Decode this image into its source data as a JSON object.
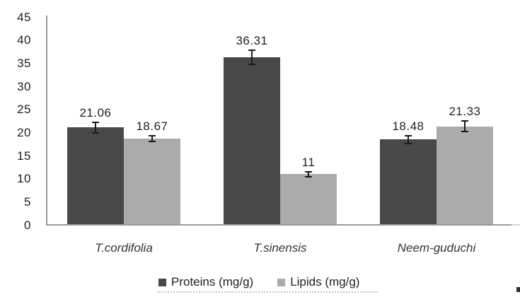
{
  "figure": {
    "background": "#ffffff",
    "axis_color": "#9a9a9a",
    "text_color": "#1f1f1f"
  },
  "chart_data": {
    "type": "bar",
    "title": "",
    "xlabel": "",
    "ylabel": "",
    "categories": [
      "T.cordifolia",
      "T.sinensis",
      "Neem-guduchi"
    ],
    "series": [
      {
        "name": "Proteins (mg/g)",
        "color": "#484848",
        "values": [
          21.06,
          36.31,
          18.48
        ],
        "labels": [
          "21.06",
          "36.31",
          "18.48"
        ],
        "errors": [
          1.3,
          1.7,
          1.0
        ]
      },
      {
        "name": "Lipids (mg/g)",
        "color": "#ababab",
        "values": [
          18.67,
          11,
          21.33
        ],
        "labels": [
          "18.67",
          "11",
          "21.33"
        ],
        "errors": [
          0.8,
          0.7,
          1.3
        ]
      }
    ],
    "ylim": [
      0,
      45
    ],
    "yticks": [
      0,
      5,
      10,
      15,
      20,
      25,
      30,
      35,
      40,
      45
    ],
    "grid": false,
    "error_bars": true,
    "legend_position": "bottom"
  }
}
